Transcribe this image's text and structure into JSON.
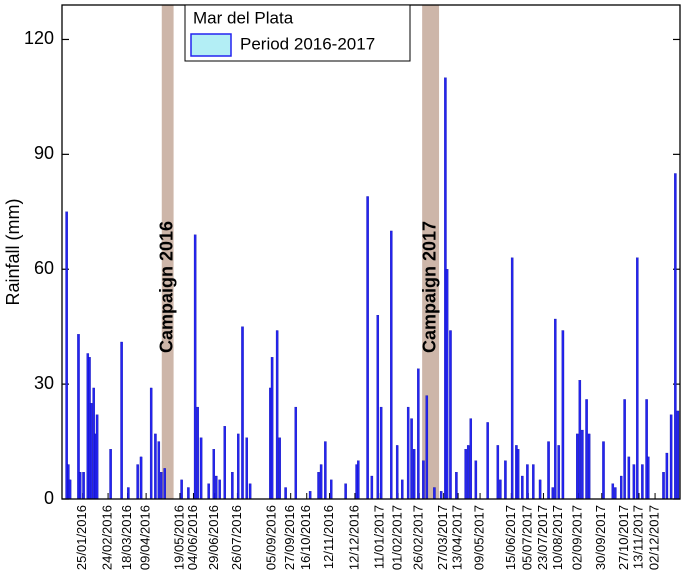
{
  "chart_data": {
    "type": "bar",
    "ylabel": "Rainfall (mm)",
    "legend_title": "Mar del Plata",
    "legend": "upper left",
    "xlim": [
      "01/01/2016",
      "31/12/2017"
    ],
    "ylim": [
      0,
      129
    ],
    "yticks": [
      0,
      30,
      60,
      90,
      120
    ],
    "xticks": [
      "25/01/2016",
      "24/02/2016",
      "18/03/2016",
      "09/04/2016",
      "19/05/2016",
      "04/06/2016",
      "29/06/2016",
      "26/07/2016",
      "05/09/2016",
      "27/09/2016",
      "16/10/2016",
      "12/11/2016",
      "12/12/2016",
      "11/01/2017",
      "01/02/2017",
      "26/02/2017",
      "27/03/2017",
      "13/04/2017",
      "09/05/2017",
      "15/06/2017",
      "05/07/2017",
      "23/07/2017",
      "10/08/2017",
      "02/09/2017",
      "30/09/2017",
      "27/10/2017",
      "13/11/2017",
      "02/12/2017"
    ],
    "annotations": [
      {
        "label": "Campaign 2016",
        "start": "28/04/2016",
        "end": "11/05/2016",
        "color": "#cdb6a9",
        "text_color": "#9b30ff"
      },
      {
        "label": "Campaign 2017",
        "start": "02/03/2017",
        "end": "21/03/2017",
        "color": "#cdb6a9",
        "text_color": "#9b30ff"
      }
    ],
    "x": [
      "06/01/2016",
      "08/01/2016",
      "10/01/2016",
      "20/01/2016",
      "22/01/2016",
      "26/01/2016",
      "31/01/2016",
      "02/02/2016",
      "04/02/2016",
      "07/02/2016",
      "09/02/2016",
      "11/02/2016",
      "27/02/2016",
      "11/03/2016",
      "19/03/2016",
      "30/03/2016",
      "03/04/2016",
      "15/04/2016",
      "20/04/2016",
      "24/04/2016",
      "27/04/2016",
      "01/05/2016",
      "21/05/2016",
      "29/05/2016",
      "06/06/2016",
      "09/06/2016",
      "13/06/2016",
      "22/06/2016",
      "28/06/2016",
      "01/07/2016",
      "05/07/2016",
      "11/07/2016",
      "20/07/2016",
      "27/07/2016",
      "01/08/2016",
      "06/08/2016",
      "10/08/2016",
      "03/09/2016",
      "05/09/2016",
      "11/09/2016",
      "14/09/2016",
      "21/09/2016",
      "03/10/2016",
      "20/10/2016",
      "30/10/2016",
      "02/11/2016",
      "07/11/2016",
      "14/11/2016",
      "01/12/2016",
      "14/12/2016",
      "16/12/2016",
      "27/12/2016",
      "01/01/2017",
      "08/01/2017",
      "12/01/2017",
      "24/01/2017",
      "31/01/2017",
      "06/02/2017",
      "13/02/2017",
      "17/02/2017",
      "20/02/2017",
      "25/02/2017",
      "03/03/2017",
      "07/03/2017",
      "16/03/2017",
      "24/03/2017",
      "29/03/2017",
      "31/03/2017",
      "04/04/2017",
      "11/04/2017",
      "22/04/2017",
      "25/04/2017",
      "28/04/2017",
      "04/05/2017",
      "18/05/2017",
      "30/05/2017",
      "02/06/2017",
      "08/06/2017",
      "16/06/2017",
      "21/06/2017",
      "23/06/2017",
      "28/06/2017",
      "04/07/2017",
      "11/07/2017",
      "19/07/2017",
      "29/07/2017",
      "03/08/2017",
      "06/08/2017",
      "10/08/2017",
      "15/08/2017",
      "01/09/2017",
      "04/09/2017",
      "07/09/2017",
      "12/09/2017",
      "15/09/2017",
      "02/10/2017",
      "13/10/2017",
      "16/10/2017",
      "23/10/2017",
      "27/10/2017",
      "01/11/2017",
      "07/11/2017",
      "11/11/2017",
      "17/11/2017",
      "22/11/2017",
      "24/11/2017",
      "12/12/2017",
      "16/12/2017",
      "21/12/2017",
      "26/12/2017",
      "29/12/2017"
    ],
    "series": [
      {
        "name": "Period 2016-2017",
        "color": "#2424f0",
        "legend_fill": "#b3eef5",
        "values": [
          75,
          9,
          5,
          43,
          7,
          7,
          38,
          37,
          25,
          29,
          17,
          22,
          13,
          41,
          3,
          9,
          11,
          29,
          17,
          15,
          7,
          8,
          5,
          3,
          69,
          24,
          16,
          4,
          13,
          6,
          5,
          19,
          7,
          17,
          45,
          16,
          4,
          29,
          37,
          44,
          16,
          3,
          24,
          2,
          7,
          9,
          15,
          5,
          4,
          9,
          10,
          79,
          6,
          48,
          24,
          70,
          14,
          5,
          24,
          21,
          13,
          34,
          10,
          27,
          3,
          2,
          110,
          60,
          44,
          7,
          13,
          14,
          21,
          10,
          20,
          14,
          5,
          10,
          63,
          14,
          13,
          6,
          9,
          9,
          5,
          15,
          3,
          47,
          14,
          44,
          17,
          31,
          18,
          26,
          17,
          15,
          4,
          3,
          6,
          26,
          11,
          9,
          63,
          9,
          26,
          11,
          7,
          12,
          22,
          85,
          23
        ]
      }
    ]
  }
}
